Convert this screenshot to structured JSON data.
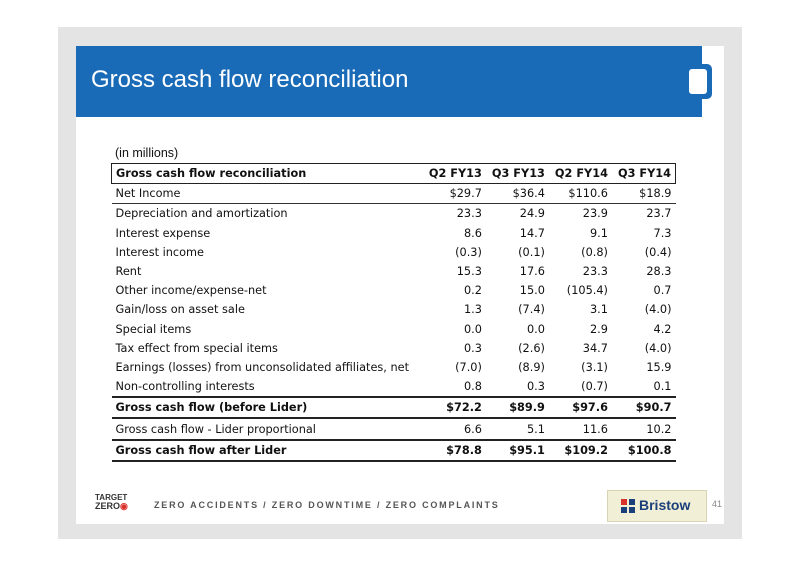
{
  "slide": {
    "title": "Gross cash flow reconciliation",
    "page_number": "41",
    "units_note": "(in millions)"
  },
  "table": {
    "header": {
      "label": "Gross cash flow reconciliation",
      "cols": [
        "Q2 FY13",
        "Q3 FY13",
        "Q2 FY14",
        "Q3 FY14"
      ]
    },
    "rows": [
      {
        "label": "Net Income",
        "values": [
          "$29.7",
          "$36.4",
          "$110.6",
          "$18.9"
        ]
      },
      {
        "label": "Depreciation and amortization",
        "values": [
          "23.3",
          "24.9",
          "23.9",
          "23.7"
        ]
      },
      {
        "label": "Interest expense",
        "values": [
          "8.6",
          "14.7",
          "9.1",
          "7.3"
        ]
      },
      {
        "label": "Interest income",
        "values": [
          "(0.3)",
          "(0.1)",
          "(0.8)",
          "(0.4)"
        ]
      },
      {
        "label": "Rent",
        "values": [
          "15.3",
          "17.6",
          "23.3",
          "28.3"
        ]
      },
      {
        "label": "Other income/expense-net",
        "values": [
          "0.2",
          "15.0",
          "(105.4)",
          "0.7"
        ]
      },
      {
        "label": "Gain/loss on asset sale",
        "values": [
          "1.3",
          "(7.4)",
          "3.1",
          "(4.0)"
        ]
      },
      {
        "label": "Special items",
        "values": [
          "0.0",
          "0.0",
          "2.9",
          "4.2"
        ]
      },
      {
        "label": "Tax effect from special items",
        "values": [
          "0.3",
          "(2.6)",
          "34.7",
          "(4.0)"
        ]
      },
      {
        "label": "Earnings (losses) from unconsolidated affiliates, net",
        "values": [
          "(7.0)",
          "(8.9)",
          "(3.1)",
          "15.9"
        ]
      },
      {
        "label": "Non-controlling interests",
        "values": [
          "0.8",
          "0.3",
          "(0.7)",
          "0.1"
        ]
      },
      {
        "label": "Gross cash flow (before Lider)",
        "values": [
          "$72.2",
          "$89.9",
          "$97.6",
          "$90.7"
        ]
      },
      {
        "label": "Gross cash flow - Lider proportional",
        "values": [
          "6.6",
          "5.1",
          "11.6",
          "10.2"
        ]
      },
      {
        "label": "Gross cash flow after Lider",
        "values": [
          "$78.8",
          "$95.1",
          "$109.2",
          "$100.8"
        ]
      }
    ]
  },
  "footer": {
    "logo_line1": "TARGET",
    "logo_line2": "ZERO",
    "slogan": "ZERO ACCIDENTS / ZERO DOWNTIME / ZERO COMPLAINTS",
    "brand": "Bristow",
    "brand_icon": "bristow-mark-icon",
    "accent_color": "#1a6bb7"
  }
}
